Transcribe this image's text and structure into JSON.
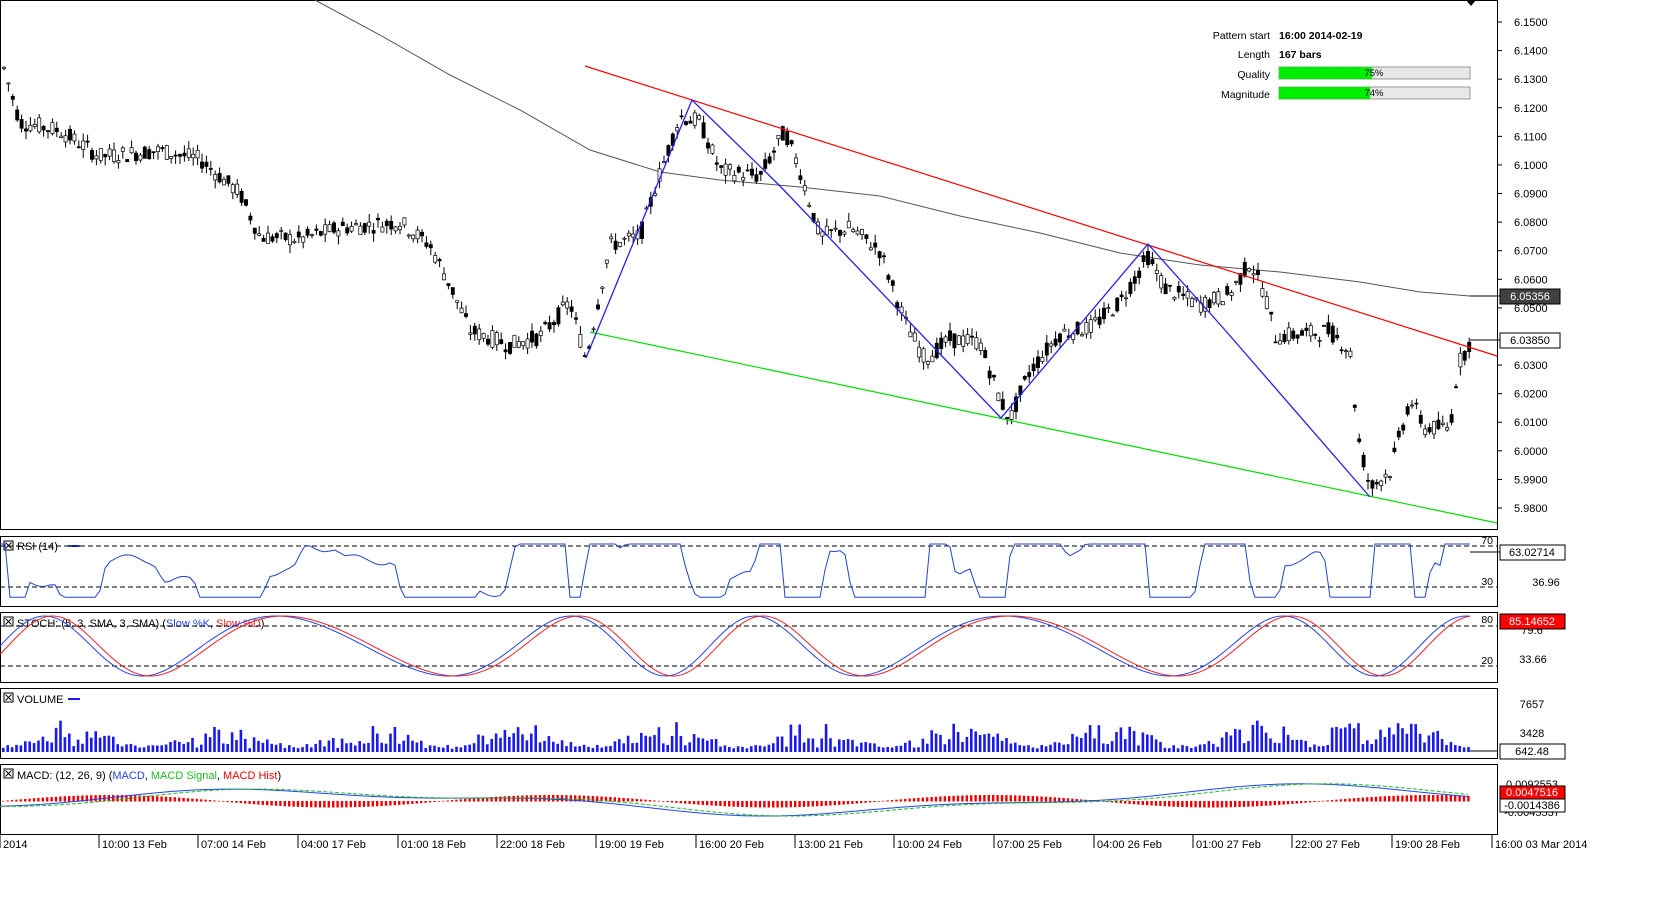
{
  "info_panel": {
    "pattern_start_label": "Pattern start",
    "pattern_start_value": "16:00 2014-02-19",
    "length_label": "Length",
    "length_value": "167 bars",
    "quality_label": "Quality",
    "quality_value": "75%",
    "quality_fraction": 0.75,
    "magnitude_label": "Magnitude",
    "magnitude_value": "74%",
    "magnitude_fraction": 0.74
  },
  "price_panel": {
    "y_ticks": [
      "6.1500",
      "6.1400",
      "6.1300",
      "6.1200",
      "6.1100",
      "6.1000",
      "6.0900",
      "6.0800",
      "6.0700",
      "6.0600",
      "6.0500",
      "6.0300",
      "6.0200",
      "6.0100",
      "6.0000",
      "5.9900",
      "5.9800"
    ],
    "y_tick_values": [
      6.15,
      6.14,
      6.13,
      6.12,
      6.11,
      6.1,
      6.09,
      6.08,
      6.07,
      6.06,
      6.05,
      6.03,
      6.02,
      6.01,
      6.0,
      5.99,
      5.98
    ],
    "ylim": [
      5.9735,
      6.1545
    ],
    "ma_label": "6.05356",
    "ma_value": 6.05356,
    "last_label": "6.03850",
    "last_value": 6.0385
  },
  "rsi_panel": {
    "title": "RSI (14)",
    "level_high": "70",
    "level_low": "30",
    "mid_tick": "36.96",
    "current": "63.02714",
    "current_value": 63.02714
  },
  "stoch_panel": {
    "title": "STOCH: (5, 3, SMA, 3, SMA)",
    "k_label": "Slow %K",
    "d_label": "Slow %D",
    "level_high": "80",
    "level_low": "20",
    "overlapped_tick": "79.6",
    "mid_tick": "33.66",
    "current": "85.14652",
    "current_value": 85.14652
  },
  "volume_panel": {
    "title": "VOLUME",
    "tick_top": "7657",
    "tick_mid": "3428",
    "current": "642.48",
    "max_value": 8900
  },
  "macd_panel": {
    "title": "MACD: (12, 26, 9)",
    "macd_label": "MACD",
    "signal_label": "MACD Signal",
    "hist_label": "MACD Hist",
    "tick_top": "0.0092553",
    "tick_bottom": "-0.0045537",
    "current_macd": "0.0047516",
    "current_signal": "-0.0014386"
  },
  "x_axis": {
    "labels": [
      "2014",
      "10:00 13 Feb",
      "07:00 14 Feb",
      "04:00 17 Feb",
      "01:00 18 Feb",
      "22:00 18 Feb",
      "19:00 19 Feb",
      "16:00 20 Feb",
      "13:00 21 Feb",
      "10:00 24 Feb",
      "07:00 25 Feb",
      "04:00 26 Feb",
      "01:00 27 Feb",
      "22:00 27 Feb",
      "19:00 28 Feb",
      "16:00 03 Mar 2014"
    ]
  },
  "colors": {
    "resistance_line": "#ff0000",
    "support_line": "#00dd00",
    "zigzag": "#2222ee",
    "moving_average": "#555555",
    "rsi_line": "#2244cc",
    "stoch_k": "#2244ee",
    "stoch_d": "#ee2222",
    "volume_bars": "#1a1aee",
    "macd_line": "#2244ee",
    "macd_signal": "#22bb22",
    "macd_hist": "#ee0000",
    "bar_fill": "#00ee00"
  },
  "chart_data": {
    "type": "candlestick",
    "pattern": "descending channel",
    "ylim": [
      5.9735,
      6.1545
    ],
    "key_points": [
      {
        "x": "16:00 2014-02-19",
        "y": 6.032,
        "role": "support-anchor"
      },
      {
        "x": "20 Feb",
        "y": 6.122,
        "role": "resistance-touch"
      },
      {
        "x": "25 Feb",
        "y": 6.011,
        "role": "support-touch"
      },
      {
        "x": "26 Feb",
        "y": 6.071,
        "role": "resistance-touch"
      },
      {
        "x": "28 Feb",
        "y": 5.9835,
        "role": "support-touch"
      }
    ],
    "resistance_line": [
      {
        "x": "19 Feb",
        "y": 6.1335
      },
      {
        "x": "03 Mar",
        "y": 6.0335
      }
    ],
    "support_line": [
      {
        "x": "19 Feb",
        "y": 6.0405
      },
      {
        "x": "03 Mar",
        "y": 5.9755
      }
    ],
    "moving_average": {
      "end": 6.05356
    },
    "last_price": 6.0385
  }
}
